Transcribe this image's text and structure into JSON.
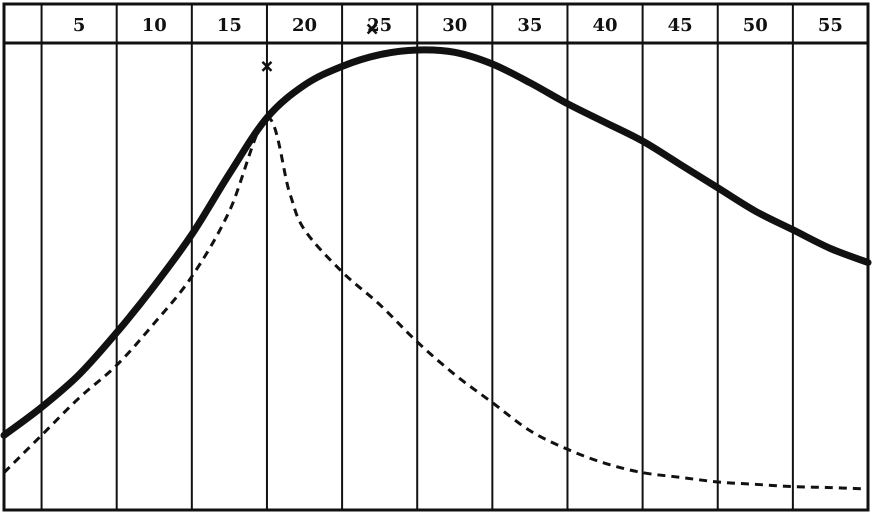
{
  "chart_data": {
    "type": "line",
    "x_ticks": [
      "5",
      "10",
      "15",
      "20",
      "25",
      "30",
      "35",
      "40",
      "45",
      "50",
      "55"
    ],
    "xlim": [
      0,
      57.5
    ],
    "ylim": [
      0,
      1
    ],
    "grid": true,
    "series": [
      {
        "style": "solid",
        "color": "#111111",
        "points": [
          [
            0,
            0.16
          ],
          [
            2.5,
            0.22
          ],
          [
            5,
            0.29
          ],
          [
            7.5,
            0.38
          ],
          [
            10,
            0.48
          ],
          [
            12.5,
            0.59
          ],
          [
            15,
            0.72
          ],
          [
            17.5,
            0.84
          ],
          [
            20,
            0.91
          ],
          [
            22.5,
            0.95
          ],
          [
            25,
            0.975
          ],
          [
            27.5,
            0.985
          ],
          [
            30,
            0.98
          ],
          [
            32.5,
            0.955
          ],
          [
            35,
            0.915
          ],
          [
            37.5,
            0.87
          ],
          [
            40,
            0.83
          ],
          [
            42.5,
            0.79
          ],
          [
            45,
            0.74
          ],
          [
            47.5,
            0.69
          ],
          [
            50,
            0.64
          ],
          [
            52.5,
            0.6
          ],
          [
            55,
            0.56
          ],
          [
            57.5,
            0.53
          ]
        ]
      },
      {
        "style": "dashed",
        "color": "#111111",
        "points": [
          [
            0,
            0.08
          ],
          [
            2.5,
            0.16
          ],
          [
            5,
            0.24
          ],
          [
            7.5,
            0.31
          ],
          [
            10,
            0.4
          ],
          [
            12.5,
            0.5
          ],
          [
            15,
            0.64
          ],
          [
            17.5,
            0.84
          ],
          [
            19,
            0.68
          ],
          [
            20,
            0.6
          ],
          [
            22.5,
            0.51
          ],
          [
            25,
            0.44
          ],
          [
            27.5,
            0.36
          ],
          [
            30,
            0.29
          ],
          [
            32.5,
            0.23
          ],
          [
            35,
            0.17
          ],
          [
            37.5,
            0.13
          ],
          [
            40,
            0.1
          ],
          [
            42.5,
            0.08
          ],
          [
            45,
            0.07
          ],
          [
            47.5,
            0.06
          ],
          [
            50,
            0.055
          ],
          [
            52.5,
            0.05
          ],
          [
            55,
            0.048
          ],
          [
            57.5,
            0.045
          ]
        ]
      }
    ],
    "markers": [
      {
        "symbol": "x",
        "x": 17.5,
        "y": 0.95
      },
      {
        "symbol": "x",
        "x": 24.5,
        "y": 1.03
      }
    ]
  }
}
